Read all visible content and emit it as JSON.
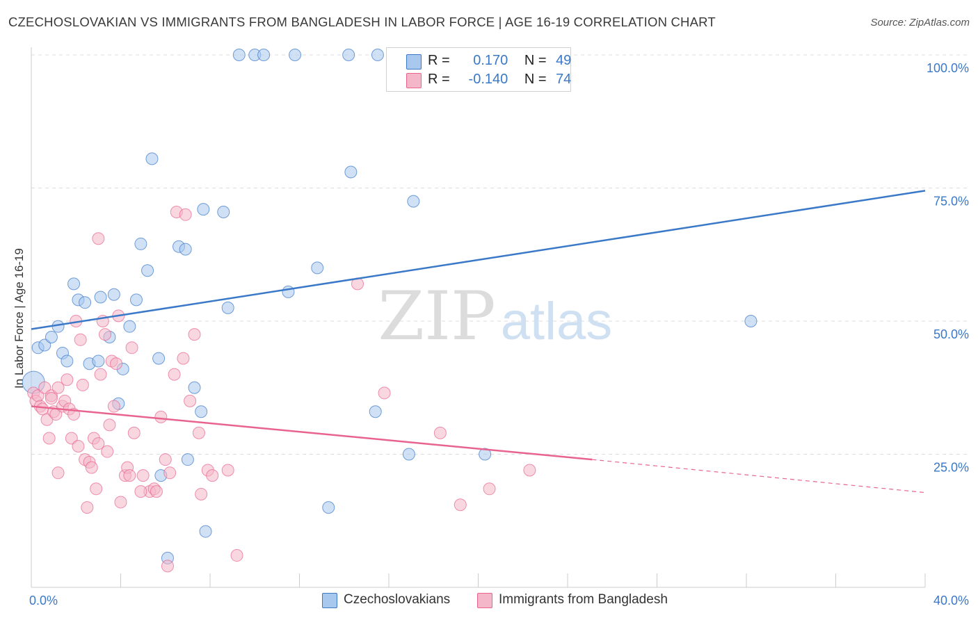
{
  "header": {
    "title": "CZECHOSLOVAKIAN VS IMMIGRANTS FROM BANGLADESH IN LABOR FORCE | AGE 16-19 CORRELATION CHART",
    "source": "Source: ZipAtlas.com"
  },
  "watermark": {
    "zip": "ZIP",
    "atlas": "atlas"
  },
  "legend": {
    "rows": [
      {
        "r_label": "R =",
        "r_value": "0.170",
        "n_label": "N =",
        "n_value": "49",
        "color": "#a9c8ee"
      },
      {
        "r_label": "R =",
        "r_value": "-0.140",
        "n_label": "N =",
        "n_value": "74",
        "color": "#f4b6c9"
      }
    ]
  },
  "bottom_legend": [
    {
      "label": "Czechoslovakians",
      "color": "#a9c8ee"
    },
    {
      "label": "Immigrants from Bangladesh",
      "color": "#f4b6c9"
    }
  ],
  "chart_data": {
    "type": "scatter",
    "title": "CZECHOSLOVAKIAN VS IMMIGRANTS FROM BANGLADESH IN LABOR FORCE | AGE 16-19 CORRELATION CHART",
    "xlabel": "",
    "ylabel": "In Labor Force | Age 16-19",
    "xlim": [
      0,
      40
    ],
    "ylim": [
      0,
      100
    ],
    "x_tick_labels": [
      "0.0%",
      "40.0%"
    ],
    "y_tick_labels": [
      "25.0%",
      "50.0%",
      "75.0%",
      "100.0%"
    ],
    "y_ticks": [
      25,
      50,
      75,
      100
    ],
    "grid": true,
    "legend_position": "top-center",
    "series": [
      {
        "name": "Czechoslovakians",
        "color": "#3a78c8",
        "fill": "#a9c8ee",
        "trend": {
          "x": [
            0,
            40
          ],
          "y": [
            48.5,
            74.5
          ]
        },
        "points": [
          [
            0.1,
            38.5
          ],
          [
            0.3,
            45
          ],
          [
            0.6,
            45.5
          ],
          [
            0.9,
            47
          ],
          [
            1.2,
            49
          ],
          [
            1.4,
            44
          ],
          [
            1.6,
            42.5
          ],
          [
            1.9,
            57
          ],
          [
            2.1,
            54
          ],
          [
            2.4,
            53.5
          ],
          [
            2.6,
            42
          ],
          [
            3.1,
            54.5
          ],
          [
            3.0,
            42.5
          ],
          [
            3.5,
            47
          ],
          [
            3.7,
            55
          ],
          [
            3.9,
            34.5
          ],
          [
            4.1,
            41
          ],
          [
            4.4,
            49
          ],
          [
            4.7,
            54
          ],
          [
            4.9,
            64.5
          ],
          [
            5.2,
            59.5
          ],
          [
            5.4,
            80.5
          ],
          [
            5.7,
            43
          ],
          [
            5.8,
            21
          ],
          [
            6.1,
            5.5
          ],
          [
            6.6,
            64
          ],
          [
            6.9,
            63.5
          ],
          [
            7.0,
            24
          ],
          [
            7.3,
            37.5
          ],
          [
            7.6,
            33
          ],
          [
            7.7,
            71
          ],
          [
            7.8,
            10.5
          ],
          [
            8.6,
            70.5
          ],
          [
            8.8,
            52.5
          ],
          [
            9.3,
            100
          ],
          [
            10.0,
            100
          ],
          [
            10.4,
            100
          ],
          [
            11.5,
            55.5
          ],
          [
            11.8,
            100
          ],
          [
            12.8,
            60
          ],
          [
            13.3,
            15
          ],
          [
            14.2,
            100
          ],
          [
            14.3,
            78
          ],
          [
            15.5,
            100
          ],
          [
            15.4,
            33
          ],
          [
            16.9,
            25
          ],
          [
            17.1,
            72.5
          ],
          [
            20.3,
            25
          ],
          [
            32.2,
            50
          ]
        ]
      },
      {
        "name": "Immigrants from Bangladesh",
        "color": "#e8648e",
        "fill": "#f4b6c9",
        "trend": {
          "x": [
            0,
            25.1
          ],
          "y": [
            34,
            24
          ]
        },
        "trend_dashed": {
          "x": [
            25.1,
            40
          ],
          "y": [
            24,
            17.8
          ]
        },
        "points": [
          [
            0.1,
            36.5
          ],
          [
            0.2,
            35
          ],
          [
            0.3,
            36
          ],
          [
            0.4,
            34
          ],
          [
            0.5,
            33.5
          ],
          [
            0.6,
            37.5
          ],
          [
            0.7,
            31.5
          ],
          [
            0.8,
            28
          ],
          [
            0.9,
            36
          ],
          [
            1.0,
            33
          ],
          [
            1.1,
            32.5
          ],
          [
            1.2,
            37.5
          ],
          [
            1.2,
            21.5
          ],
          [
            1.4,
            34
          ],
          [
            1.5,
            35
          ],
          [
            1.6,
            39
          ],
          [
            1.7,
            33.5
          ],
          [
            1.8,
            28
          ],
          [
            1.9,
            32.5
          ],
          [
            2.0,
            50
          ],
          [
            2.1,
            26.5
          ],
          [
            2.2,
            46.5
          ],
          [
            2.3,
            38
          ],
          [
            2.4,
            24
          ],
          [
            2.5,
            15
          ],
          [
            2.6,
            23.5
          ],
          [
            2.7,
            22.5
          ],
          [
            2.8,
            28
          ],
          [
            2.9,
            18.5
          ],
          [
            3.0,
            27
          ],
          [
            3.0,
            65.5
          ],
          [
            3.1,
            40
          ],
          [
            3.2,
            50
          ],
          [
            3.3,
            47.5
          ],
          [
            3.4,
            25.5
          ],
          [
            3.5,
            30.5
          ],
          [
            3.6,
            42.5
          ],
          [
            3.7,
            34
          ],
          [
            3.8,
            42
          ],
          [
            3.9,
            51
          ],
          [
            4.0,
            16
          ],
          [
            4.2,
            21
          ],
          [
            4.3,
            22.5
          ],
          [
            4.4,
            21
          ],
          [
            4.5,
            45
          ],
          [
            4.6,
            29
          ],
          [
            5.0,
            21
          ],
          [
            5.3,
            18
          ],
          [
            5.5,
            18.5
          ],
          [
            5.6,
            18
          ],
          [
            5.8,
            32
          ],
          [
            6.0,
            24
          ],
          [
            6.1,
            4
          ],
          [
            6.4,
            40
          ],
          [
            6.5,
            70.5
          ],
          [
            6.8,
            43
          ],
          [
            6.9,
            70
          ],
          [
            7.1,
            35
          ],
          [
            7.3,
            47.5
          ],
          [
            7.5,
            29
          ],
          [
            7.6,
            17.5
          ],
          [
            7.9,
            22
          ],
          [
            8.1,
            21
          ],
          [
            8.8,
            22
          ],
          [
            9.2,
            6
          ],
          [
            14.6,
            57
          ],
          [
            15.8,
            36.5
          ],
          [
            18.3,
            29
          ],
          [
            19.2,
            15.5
          ],
          [
            20.5,
            18.5
          ],
          [
            22.3,
            22
          ],
          [
            0.9,
            35.5
          ],
          [
            4.9,
            18
          ],
          [
            6.2,
            21.5
          ]
        ]
      }
    ]
  }
}
